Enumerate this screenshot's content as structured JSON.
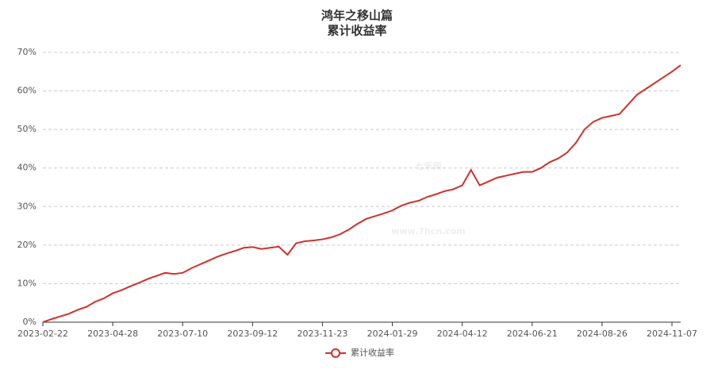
{
  "chart_data": {
    "type": "line",
    "title": "鸿年之移山篇",
    "subtitle": "累计收益率",
    "watermark": {
      "brand": "七禾网",
      "site": "www.7hcn.com"
    },
    "categories": [
      "2023-02-22",
      null,
      null,
      null,
      null,
      null,
      null,
      null,
      "2023-04-28",
      null,
      null,
      null,
      null,
      null,
      null,
      null,
      "2023-07-10",
      null,
      null,
      null,
      null,
      null,
      null,
      null,
      "2023-09-12",
      null,
      null,
      null,
      null,
      null,
      null,
      null,
      "2023-11-23",
      null,
      null,
      null,
      null,
      null,
      null,
      null,
      "2024-01-29",
      null,
      null,
      null,
      null,
      null,
      null,
      null,
      "2024-04-12",
      null,
      null,
      null,
      null,
      null,
      null,
      null,
      "2024-06-21",
      null,
      null,
      null,
      null,
      null,
      null,
      null,
      "2024-08-26",
      null,
      null,
      null,
      null,
      null,
      null,
      null,
      "2024-11-07",
      null
    ],
    "series": [
      {
        "name": "累计收益率",
        "color": "#d0302a",
        "values": [
          0,
          0.8,
          1.5,
          2.2,
          3.2,
          4,
          5.3,
          6.2,
          7.5,
          8.3,
          9.3,
          10.2,
          11.2,
          12,
          12.8,
          12.5,
          12.8,
          14,
          15,
          16,
          17,
          17.8,
          18.5,
          19.3,
          19.5,
          19,
          19.3,
          19.6,
          17.5,
          20.5,
          21,
          21.2,
          21.5,
          22,
          22.8,
          24,
          25.5,
          26.8,
          27.5,
          28.2,
          29,
          30.2,
          31,
          31.5,
          32.5,
          33.2,
          34,
          34.5,
          35.5,
          39.5,
          35.5,
          36.5,
          37.5,
          38,
          38.5,
          39,
          39,
          40,
          41.5,
          42.5,
          44,
          46.5,
          50,
          52,
          53,
          53.5,
          54,
          56.5,
          59,
          60.5,
          62,
          63.5,
          65,
          66.7
        ]
      }
    ],
    "ylim": [
      0,
      70
    ],
    "yticks": [
      {
        "value": 0,
        "label": "0%"
      },
      {
        "value": 10,
        "label": "10%"
      },
      {
        "value": 20,
        "label": "20%"
      },
      {
        "value": 30,
        "label": "30%"
      },
      {
        "value": 40,
        "label": "40%"
      },
      {
        "value": 50,
        "label": "50%"
      },
      {
        "value": 60,
        "label": "60%"
      },
      {
        "value": 70,
        "label": "70%"
      }
    ],
    "grid": true,
    "legend": "bottom"
  }
}
